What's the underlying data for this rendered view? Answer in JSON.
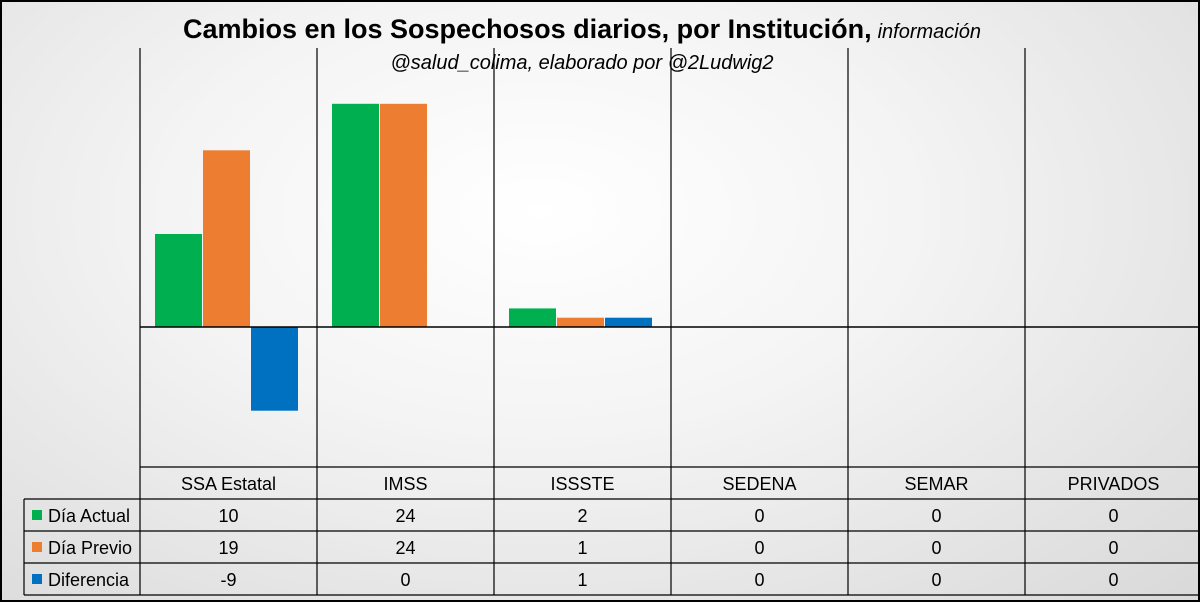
{
  "chart_data": {
    "type": "bar",
    "title": "Cambios en los Sospechosos diarios, por Institución,",
    "title_tail": "información",
    "subtitle": "@salud_colima, elaborado por @2Ludwig2",
    "categories": [
      "SSA Estatal",
      "IMSS",
      "ISSSTE",
      "SEDENA",
      "SEMAR",
      "PRIVADOS"
    ],
    "series": [
      {
        "name": "Día Actual",
        "color": "#00b050",
        "values": [
          10,
          24,
          2,
          0,
          0,
          0
        ]
      },
      {
        "name": "Día Previo",
        "color": "#ed7d31",
        "values": [
          19,
          24,
          1,
          0,
          0,
          0
        ]
      },
      {
        "name": "Diferencia",
        "color": "#0070c0",
        "values": [
          -9,
          0,
          1,
          0,
          0,
          0
        ]
      }
    ],
    "ylim": [
      -15,
      25
    ],
    "legend": "data-table",
    "grid": "vertical category separators"
  }
}
